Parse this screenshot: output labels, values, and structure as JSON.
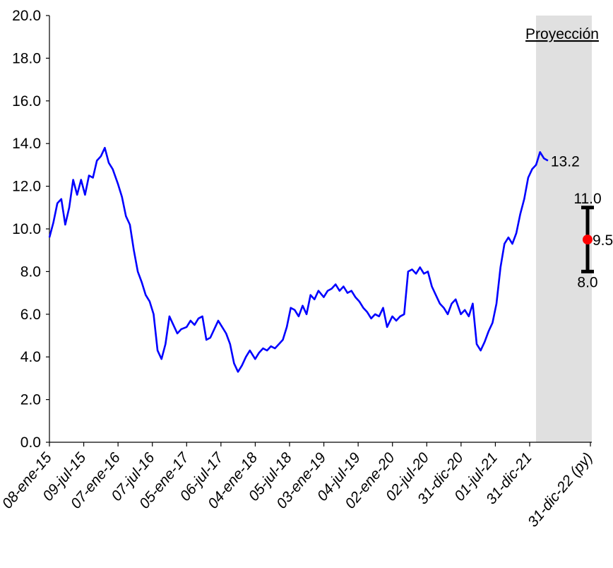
{
  "chart_data": {
    "type": "line",
    "ylim": [
      0,
      20
    ],
    "yticks": [
      "0.0",
      "2.0",
      "4.0",
      "6.0",
      "8.0",
      "10.0",
      "12.0",
      "14.0",
      "16.0",
      "18.0",
      "20.0"
    ],
    "xtick_labels": [
      "08-ene-15",
      "09-jul-15",
      "07-ene-16",
      "07-jul-16",
      "05-ene-17",
      "06-jul-17",
      "04-ene-18",
      "05-jul-18",
      "03-ene-19",
      "04-jul-19",
      "02-ene-20",
      "02-jul-20",
      "31-dic-20",
      "01-jul-21",
      "31-dic-21",
      "31-dic-22 (py)"
    ],
    "projection_label": "Proyección",
    "series": [
      {
        "color": "#0000ff",
        "points": [
          [
            "2015-01-08",
            9.6
          ],
          [
            "2015-01-29",
            10.3
          ],
          [
            "2015-02-19",
            11.2
          ],
          [
            "2015-03-12",
            11.4
          ],
          [
            "2015-04-02",
            10.2
          ],
          [
            "2015-04-23",
            11.0
          ],
          [
            "2015-05-14",
            12.3
          ],
          [
            "2015-06-04",
            11.6
          ],
          [
            "2015-06-25",
            12.3
          ],
          [
            "2015-07-16",
            11.6
          ],
          [
            "2015-08-06",
            12.5
          ],
          [
            "2015-08-27",
            12.4
          ],
          [
            "2015-09-17",
            13.2
          ],
          [
            "2015-10-08",
            13.4
          ],
          [
            "2015-10-29",
            13.8
          ],
          [
            "2015-11-19",
            13.1
          ],
          [
            "2015-12-10",
            12.8
          ],
          [
            "2016-01-07",
            12.1
          ],
          [
            "2016-01-28",
            11.5
          ],
          [
            "2016-02-18",
            10.6
          ],
          [
            "2016-03-10",
            10.2
          ],
          [
            "2016-03-31",
            9.0
          ],
          [
            "2016-04-21",
            8.0
          ],
          [
            "2016-05-12",
            7.5
          ],
          [
            "2016-06-02",
            6.9
          ],
          [
            "2016-06-23",
            6.6
          ],
          [
            "2016-07-14",
            6.0
          ],
          [
            "2016-08-04",
            4.3
          ],
          [
            "2016-08-25",
            3.9
          ],
          [
            "2016-09-15",
            4.6
          ],
          [
            "2016-10-06",
            5.9
          ],
          [
            "2016-10-27",
            5.5
          ],
          [
            "2016-11-17",
            5.1
          ],
          [
            "2016-12-08",
            5.3
          ],
          [
            "2017-01-05",
            5.4
          ],
          [
            "2017-01-26",
            5.7
          ],
          [
            "2017-02-16",
            5.5
          ],
          [
            "2017-03-09",
            5.8
          ],
          [
            "2017-03-30",
            5.9
          ],
          [
            "2017-04-20",
            4.8
          ],
          [
            "2017-05-11",
            4.9
          ],
          [
            "2017-06-01",
            5.3
          ],
          [
            "2017-06-22",
            5.7
          ],
          [
            "2017-07-13",
            5.4
          ],
          [
            "2017-08-03",
            5.1
          ],
          [
            "2017-08-24",
            4.6
          ],
          [
            "2017-09-14",
            3.7
          ],
          [
            "2017-10-05",
            3.3
          ],
          [
            "2017-10-26",
            3.6
          ],
          [
            "2017-11-16",
            4.0
          ],
          [
            "2017-12-07",
            4.3
          ],
          [
            "2018-01-04",
            3.9
          ],
          [
            "2018-01-25",
            4.2
          ],
          [
            "2018-02-15",
            4.4
          ],
          [
            "2018-03-08",
            4.3
          ],
          [
            "2018-03-29",
            4.5
          ],
          [
            "2018-04-19",
            4.4
          ],
          [
            "2018-05-10",
            4.6
          ],
          [
            "2018-05-31",
            4.8
          ],
          [
            "2018-06-21",
            5.4
          ],
          [
            "2018-07-12",
            6.3
          ],
          [
            "2018-08-02",
            6.2
          ],
          [
            "2018-08-23",
            5.9
          ],
          [
            "2018-09-13",
            6.4
          ],
          [
            "2018-10-04",
            6.0
          ],
          [
            "2018-10-25",
            6.9
          ],
          [
            "2018-11-15",
            6.7
          ],
          [
            "2018-12-06",
            7.1
          ],
          [
            "2019-01-03",
            6.8
          ],
          [
            "2019-01-24",
            7.1
          ],
          [
            "2019-02-14",
            7.2
          ],
          [
            "2019-03-07",
            7.4
          ],
          [
            "2019-03-28",
            7.1
          ],
          [
            "2019-04-18",
            7.3
          ],
          [
            "2019-05-09",
            7.0
          ],
          [
            "2019-05-30",
            7.1
          ],
          [
            "2019-06-20",
            6.8
          ],
          [
            "2019-07-11",
            6.6
          ],
          [
            "2019-08-01",
            6.3
          ],
          [
            "2019-08-22",
            6.1
          ],
          [
            "2019-09-12",
            5.8
          ],
          [
            "2019-10-03",
            6.0
          ],
          [
            "2019-10-24",
            5.9
          ],
          [
            "2019-11-14",
            6.3
          ],
          [
            "2019-12-05",
            5.4
          ],
          [
            "2020-01-02",
            5.9
          ],
          [
            "2020-01-23",
            5.7
          ],
          [
            "2020-02-13",
            5.9
          ],
          [
            "2020-03-05",
            6.0
          ],
          [
            "2020-03-26",
            8.0
          ],
          [
            "2020-04-16",
            8.1
          ],
          [
            "2020-05-07",
            7.9
          ],
          [
            "2020-05-28",
            8.2
          ],
          [
            "2020-06-18",
            7.9
          ],
          [
            "2020-07-09",
            8.0
          ],
          [
            "2020-07-30",
            7.3
          ],
          [
            "2020-08-20",
            6.9
          ],
          [
            "2020-09-10",
            6.5
          ],
          [
            "2020-10-01",
            6.3
          ],
          [
            "2020-10-22",
            6.0
          ],
          [
            "2020-11-12",
            6.5
          ],
          [
            "2020-12-03",
            6.7
          ],
          [
            "2020-12-31",
            6.0
          ],
          [
            "2021-01-21",
            6.2
          ],
          [
            "2021-02-11",
            5.9
          ],
          [
            "2021-03-04",
            6.5
          ],
          [
            "2021-03-25",
            4.6
          ],
          [
            "2021-04-15",
            4.3
          ],
          [
            "2021-05-06",
            4.7
          ],
          [
            "2021-05-27",
            5.2
          ],
          [
            "2021-06-17",
            5.6
          ],
          [
            "2021-07-08",
            6.5
          ],
          [
            "2021-07-29",
            8.2
          ],
          [
            "2021-08-19",
            9.3
          ],
          [
            "2021-09-09",
            9.6
          ],
          [
            "2021-09-30",
            9.3
          ],
          [
            "2021-10-21",
            9.8
          ],
          [
            "2021-11-11",
            10.7
          ],
          [
            "2021-12-02",
            11.4
          ],
          [
            "2021-12-23",
            12.4
          ],
          [
            "2022-01-13",
            12.8
          ],
          [
            "2022-02-03",
            13.0
          ],
          [
            "2022-02-24",
            13.6
          ],
          [
            "2022-03-17",
            13.3
          ],
          [
            "2022-04-07",
            13.2
          ]
        ]
      }
    ],
    "last_value_label": "13.2",
    "projection": {
      "x": "31-dic-22 (py)",
      "low": 8.0,
      "mid": 9.5,
      "high": 11.0,
      "low_label": "8.0",
      "mid_label": "9.5",
      "high_label": "11.0"
    },
    "grid": false,
    "legend": "none"
  }
}
